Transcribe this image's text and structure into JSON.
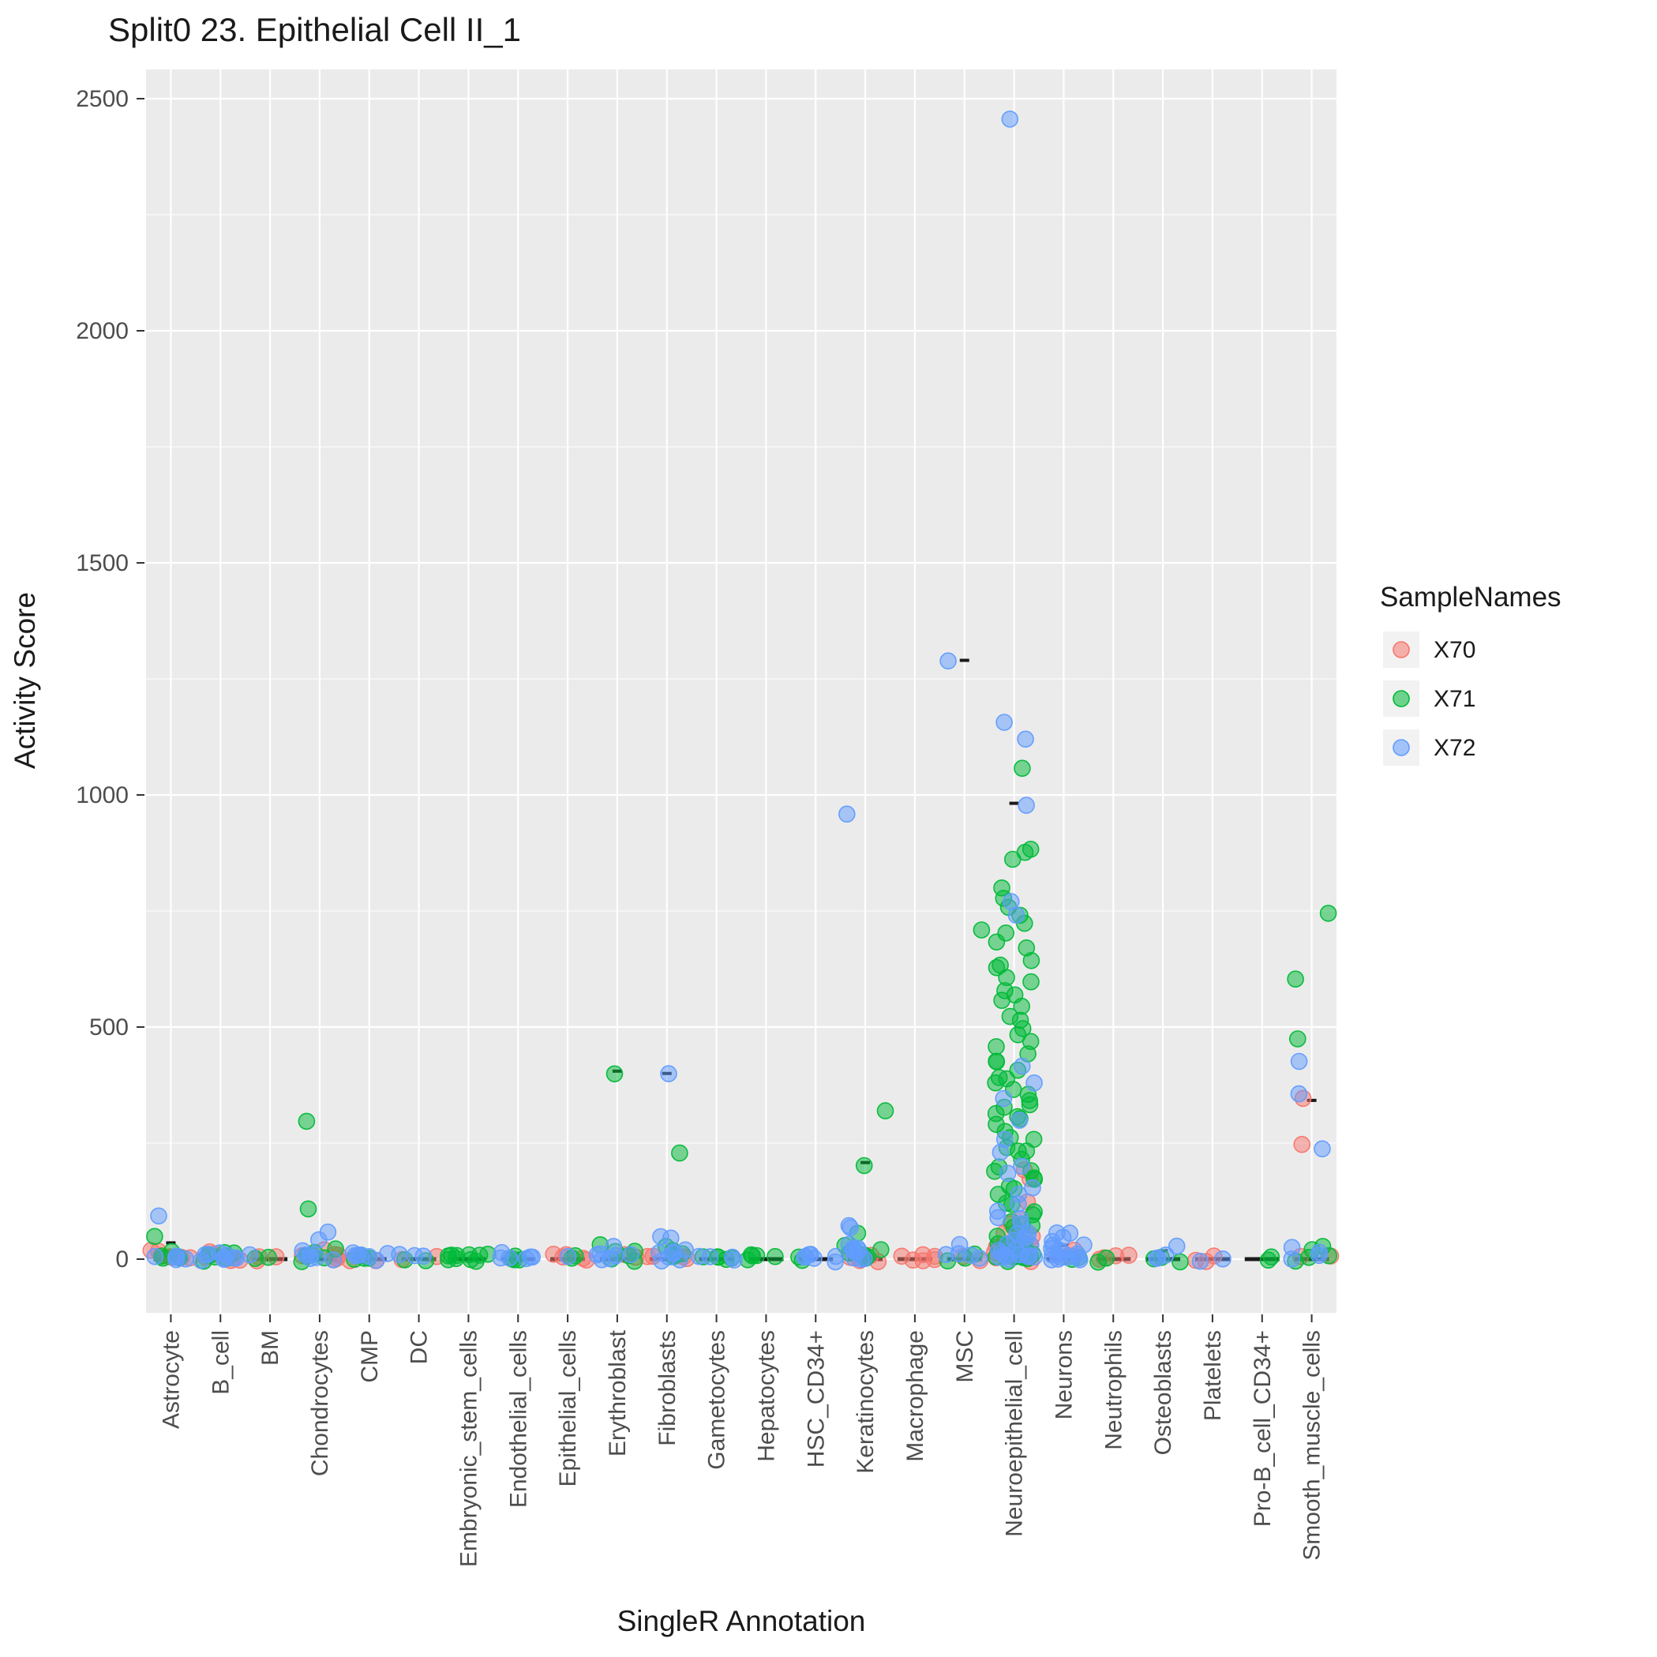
{
  "chart_data": {
    "type": "scatter",
    "title": "Split0 23. Epithelial Cell II_1",
    "xlabel": "SingleR Annotation",
    "ylabel": "Activity Score",
    "yticks": [
      0,
      500,
      1000,
      1500,
      2000,
      2500
    ],
    "ylim": [
      -115,
      2560
    ],
    "grid": true,
    "panel_bg": "#EBEBEB",
    "grid_color": "#FFFFFF",
    "median_mark_color": "#1A1A1A",
    "categories": [
      "Astrocyte",
      "B_cell",
      "BM",
      "Chondrocytes",
      "CMP",
      "DC",
      "Embryonic_stem_cells",
      "Endothelial_cells",
      "Epithelial_cells",
      "Erythroblast",
      "Fibroblasts",
      "Gametocytes",
      "Hepatocytes",
      "HSC_CD34+",
      "Keratinocytes",
      "Macrophage",
      "MSC",
      "Neuroepithelial_cell",
      "Neurons",
      "Neutrophils",
      "Osteoblasts",
      "Platelets",
      "Pro-B_cell_CD34+",
      "Smooth_muscle_cells"
    ],
    "legend": {
      "title": "SampleNames",
      "position": "right",
      "entries": [
        {
          "label": "X70",
          "color": "#F8766D"
        },
        {
          "label": "X71",
          "color": "#00BA38"
        },
        {
          "label": "X72",
          "color": "#619CFF"
        }
      ]
    },
    "series": [
      {
        "name": "X70",
        "color": "#F8766D",
        "points_by_category": {
          "Astrocyte": [
            12,
            6,
            3,
            1,
            8,
            2,
            4,
            15
          ],
          "B_cell": [
            8,
            3,
            1,
            5,
            2,
            10
          ],
          "BM": [
            2,
            1,
            4
          ],
          "Chondrocytes": [
            20,
            8,
            3,
            12,
            2,
            5
          ],
          "CMP": [
            3,
            1
          ],
          "DC": [
            1,
            2
          ],
          "Epithelial_cells": [
            5,
            3,
            1,
            2,
            4
          ],
          "Erythroblast": [
            5,
            2
          ],
          "Fibroblasts": [
            8,
            3,
            2,
            5
          ],
          "Keratinocytes": [
            10,
            3,
            2,
            6
          ],
          "Macrophage": [
            8,
            5,
            3,
            2,
            1,
            4
          ],
          "MSC": [
            2,
            1
          ],
          "Neuroepithelial_cell": [
            185,
            170,
            120,
            90,
            70,
            60,
            50,
            45,
            40,
            30,
            25,
            20,
            15,
            12,
            10,
            8,
            5,
            3,
            2,
            1
          ],
          "Neurons": [
            15,
            5,
            2
          ],
          "Neutrophils": [
            5,
            2,
            1,
            3
          ],
          "Platelets": [
            4,
            2,
            1
          ],
          "Smooth_muscle_cells": [
            340,
            245,
            5,
            2
          ]
        }
      },
      {
        "name": "X71",
        "color": "#00BA38",
        "points_by_category": {
          "Astrocyte": [
            55,
            10,
            4,
            2,
            7,
            1
          ],
          "B_cell": [
            12,
            6,
            2,
            4,
            1,
            8,
            3
          ],
          "BM": [
            3,
            1
          ],
          "Chondrocytes": [
            290,
            105,
            15,
            8,
            3,
            6,
            2,
            10
          ],
          "CMP": [
            9,
            5,
            2,
            3
          ],
          "DC": [
            4,
            2
          ],
          "Embryonic_stem_cells": [
            6,
            4,
            3,
            2,
            1,
            5,
            2,
            3,
            1,
            4
          ],
          "Endothelial_cells": [
            4,
            2,
            1,
            3
          ],
          "Epithelial_cells": [
            2,
            1
          ],
          "Erythroblast": [
            400,
            25,
            15,
            10,
            4,
            2,
            7
          ],
          "Fibroblasts": [
            230,
            20,
            12,
            8,
            3,
            5,
            15
          ],
          "Gametocytes": [
            10,
            5,
            3,
            2,
            1
          ],
          "Hepatocytes": [
            5,
            3,
            2,
            1,
            4
          ],
          "HSC_CD34+": [
            1,
            2
          ],
          "Keratinocytes": [
            320,
            205,
            55,
            30,
            20,
            15,
            8,
            3,
            12,
            5
          ],
          "MSC": [
            710,
            5,
            2,
            3
          ],
          "Neuroepithelial_cell": [
            1060,
            890,
            875,
            855,
            800,
            770,
            755,
            735,
            720,
            700,
            685,
            665,
            650,
            640,
            625,
            610,
            600,
            585,
            570,
            555,
            540,
            525,
            510,
            495,
            480,
            465,
            455,
            440,
            430,
            420,
            405,
            395,
            385,
            375,
            365,
            355,
            345,
            335,
            325,
            315,
            305,
            295,
            285,
            275,
            265,
            255,
            245,
            235,
            225,
            215,
            205,
            195,
            185,
            175,
            165,
            155,
            145,
            135,
            125,
            115,
            105,
            95,
            88,
            80,
            72,
            65,
            58,
            52,
            46,
            40,
            35,
            30,
            26,
            22,
            18,
            15,
            12,
            10,
            8,
            6,
            5,
            4,
            3,
            2,
            1
          ],
          "Neurons": [
            8,
            3
          ],
          "Neutrophils": [
            3,
            1
          ],
          "Osteoblasts": [
            5,
            3,
            1
          ],
          "Pro-B_cell_CD34+": [
            2,
            1
          ],
          "Smooth_muscle_cells": [
            750,
            610,
            470,
            20,
            15,
            8,
            3,
            2
          ]
        }
      },
      {
        "name": "X72",
        "color": "#619CFF",
        "points_by_category": {
          "Astrocyte": [
            100,
            12,
            5,
            2,
            8,
            3
          ],
          "B_cell": [
            15,
            9,
            4,
            2,
            6,
            1,
            3,
            7,
            11
          ],
          "BM": [
            2
          ],
          "Chondrocytes": [
            55,
            45,
            10,
            6,
            2,
            3,
            14,
            8
          ],
          "CMP": [
            15,
            12,
            7,
            4,
            2,
            6,
            9
          ],
          "DC": [
            6,
            3,
            1
          ],
          "Endothelial_cells": [
            8,
            6,
            3,
            1,
            2,
            5
          ],
          "Epithelial_cells": [
            1
          ],
          "Erythroblast": [
            20,
            12,
            8,
            5,
            3,
            2,
            16
          ],
          "Fibroblasts": [
            400,
            55,
            40,
            25,
            15,
            10,
            5,
            2,
            8,
            20
          ],
          "Gametocytes": [
            8,
            4,
            1,
            2
          ],
          "HSC_CD34+": [
            10,
            6,
            4,
            2,
            1,
            3,
            8
          ],
          "Keratinocytes": [
            960,
            75,
            65,
            35,
            25,
            18,
            10,
            5,
            2,
            14,
            8,
            20
          ],
          "MSC": [
            1290,
            30,
            15,
            8,
            3,
            5
          ],
          "Neuroepithelial_cell": [
            2450,
            1150,
            1120,
            980,
            770,
            740,
            420,
            380,
            340,
            300,
            260,
            230,
            200,
            180,
            160,
            140,
            120,
            105,
            90,
            80,
            70,
            60,
            55,
            50,
            45,
            40,
            35,
            30,
            25,
            20,
            15,
            12,
            10,
            8,
            6,
            5,
            4,
            3,
            2,
            1
          ],
          "Neurons": [
            55,
            50,
            45,
            40,
            35,
            30,
            25,
            20,
            15,
            12,
            10,
            8,
            6,
            5,
            4,
            3,
            2,
            1
          ],
          "Osteoblasts": [
            25,
            8,
            2,
            4
          ],
          "Platelets": [
            3,
            1
          ],
          "Smooth_muscle_cells": [
            430,
            360,
            230,
            25,
            10,
            5,
            2
          ]
        }
      }
    ],
    "median_marks": {
      "y": 0
    },
    "black_marks": [
      {
        "category": "Astrocyte",
        "y": 35
      },
      {
        "category": "Erythroblast",
        "y": 405
      },
      {
        "category": "Fibroblasts",
        "y": 400
      },
      {
        "category": "Keratinocytes",
        "y": 208
      },
      {
        "category": "MSC",
        "y": 1290
      },
      {
        "category": "Neuroepithelial_cell",
        "y": 982
      },
      {
        "category": "Neurons",
        "y": 30
      },
      {
        "category": "Osteoblasts",
        "y": 18
      },
      {
        "category": "Smooth_muscle_cells",
        "y": 342
      }
    ]
  }
}
